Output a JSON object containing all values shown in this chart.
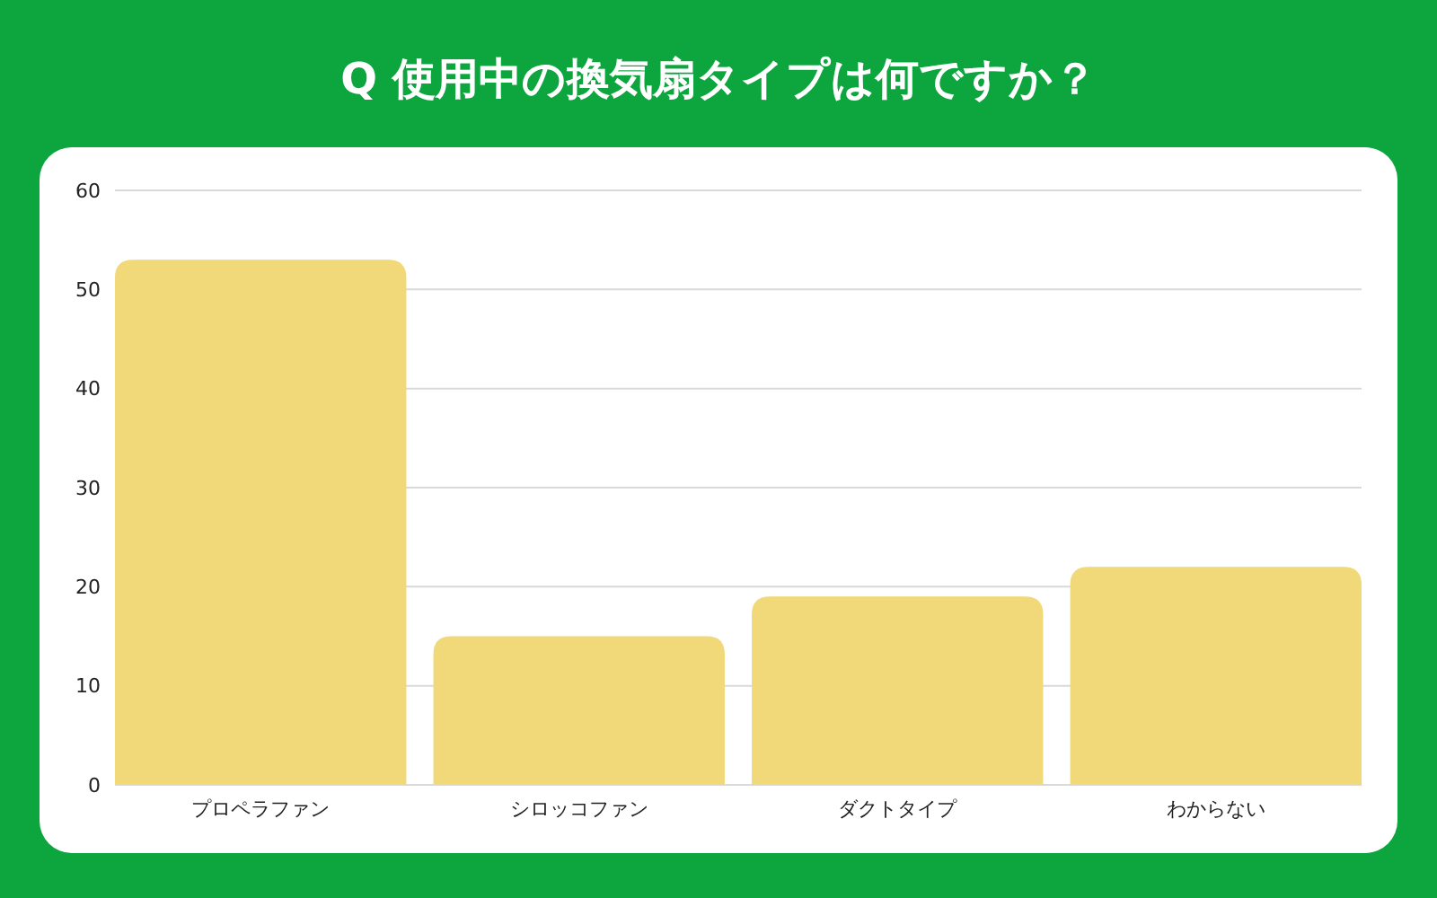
{
  "chart_data": {
    "type": "bar",
    "title": "Q 使用中の換気扇タイプは何ですか？",
    "categories": [
      "プロペラファン",
      "シロッコファン",
      "ダクトタイプ",
      "わからない"
    ],
    "values": [
      53,
      15,
      19,
      22
    ],
    "color": "#f1d878",
    "ylim": [
      0,
      60
    ],
    "yticks": [
      0,
      10,
      20,
      30,
      40,
      50,
      60
    ],
    "grid": "y"
  }
}
